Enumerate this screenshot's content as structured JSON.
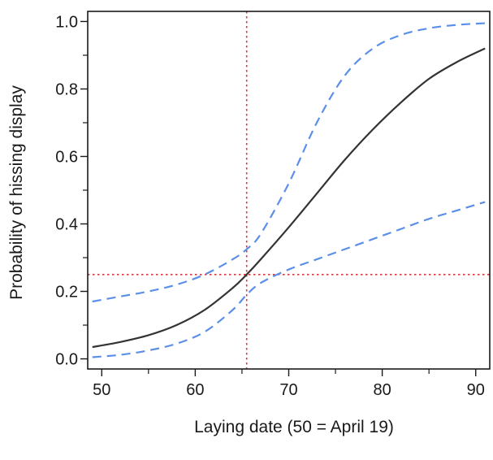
{
  "chart_data": {
    "type": "line",
    "title": "",
    "xlabel": "Laying date (50 = April 19)",
    "ylabel": "Probability of hissing display",
    "xlim": [
      48.5,
      91.5
    ],
    "ylim": [
      -0.03,
      1.03
    ],
    "x_ticks": [
      50,
      60,
      70,
      80,
      90
    ],
    "x_tick_labels": [
      "50",
      "60",
      "70",
      "80",
      "90"
    ],
    "x_minor_ticks": [
      55,
      65,
      75,
      85
    ],
    "y_ticks": [
      0.0,
      0.2,
      0.4,
      0.6,
      0.8,
      1.0
    ],
    "y_tick_labels": [
      "0.0",
      "0.2",
      "0.4",
      "0.6",
      "0.8",
      "1.0"
    ],
    "y_minor_ticks": [
      0.1,
      0.3,
      0.5,
      0.7,
      0.9
    ],
    "grid": false,
    "legend": "none",
    "series": [
      {
        "role": "fit",
        "style": "solid",
        "color": "#333333",
        "x": [
          49,
          52,
          55,
          58,
          61,
          64,
          65.5,
          67,
          70,
          73,
          76,
          79,
          82,
          85,
          88,
          91
        ],
        "y": [
          0.035,
          0.05,
          0.07,
          0.1,
          0.145,
          0.21,
          0.25,
          0.295,
          0.39,
          0.49,
          0.59,
          0.68,
          0.76,
          0.83,
          0.88,
          0.92
        ]
      },
      {
        "role": "upper-ci",
        "style": "dashed",
        "color": "#5b8fe8",
        "x": [
          49,
          52,
          55,
          58,
          61,
          64,
          65.5,
          67,
          70,
          73,
          76,
          79,
          82,
          85,
          88,
          91
        ],
        "y": [
          0.17,
          0.185,
          0.2,
          0.22,
          0.25,
          0.295,
          0.325,
          0.37,
          0.52,
          0.7,
          0.84,
          0.92,
          0.96,
          0.98,
          0.99,
          0.995
        ]
      },
      {
        "role": "lower-ci",
        "style": "dashed",
        "color": "#5b8fe8",
        "x": [
          49,
          52,
          55,
          58,
          61,
          64,
          65.5,
          67,
          70,
          73,
          76,
          79,
          82,
          85,
          88,
          91
        ],
        "y": [
          0.005,
          0.012,
          0.025,
          0.045,
          0.08,
          0.145,
          0.19,
          0.225,
          0.265,
          0.295,
          0.325,
          0.355,
          0.385,
          0.415,
          0.44,
          0.465
        ]
      }
    ],
    "reference_lines": [
      {
        "orientation": "vertical",
        "value": 65.5,
        "style": "dotted",
        "color": "#d9363e"
      },
      {
        "orientation": "horizontal",
        "value": 0.25,
        "style": "dotted",
        "color": "#d9363e"
      }
    ]
  }
}
